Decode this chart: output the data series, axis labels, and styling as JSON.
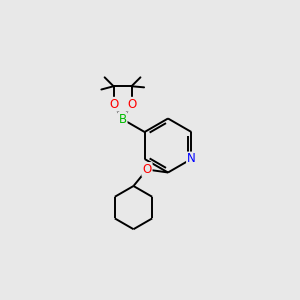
{
  "background_color": "#e8e8e8",
  "bond_color": "#000000",
  "atom_colors": {
    "B": "#00bb00",
    "O": "#ff0000",
    "N": "#0000ff",
    "C": "#000000"
  },
  "lw": 1.4,
  "figsize": [
    3.0,
    3.0
  ],
  "dpi": 100
}
